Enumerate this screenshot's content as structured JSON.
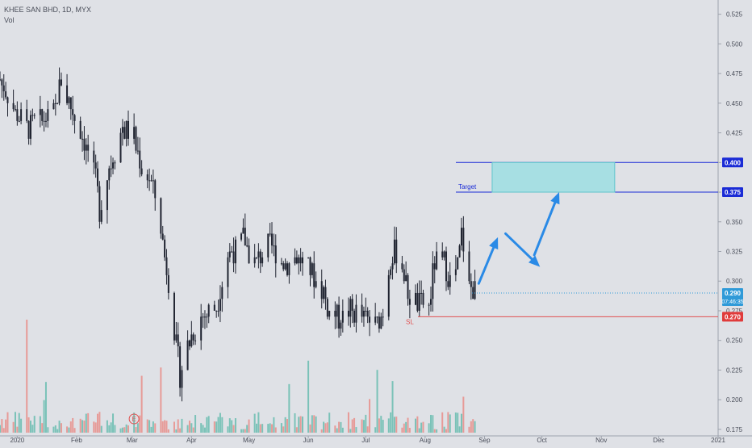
{
  "legend": {
    "symbol": "KHEE SAN BHD, 1D, MYX",
    "volume": "Vol"
  },
  "colors": {
    "background": "#dfe1e6",
    "candle": "#1f2330",
    "vol_up": "#6fbfb3",
    "vol_down": "#e8928e",
    "target_fill": "#a7dfe3",
    "target_line": "#1a2bd6",
    "sl_line": "#e05050",
    "arrow": "#2a8ae6"
  },
  "chart_data": {
    "type": "candlestick",
    "y_axis": {
      "range": [
        0.1695,
        0.537
      ],
      "ticks": [
        "0.525",
        "0.500",
        "0.475",
        "0.450",
        "0.425",
        "0.400",
        "0.375",
        "0.350",
        "0.325",
        "0.300",
        "0.275",
        "0.250",
        "0.225",
        "0.200",
        "0.175"
      ]
    },
    "x_axis": {
      "labels": [
        "2020",
        "Feb",
        "Mar",
        "Apr",
        "May",
        "Jun",
        "Jul",
        "Aug",
        "Sep",
        "Oct",
        "Nov",
        "Dec",
        "2021"
      ],
      "start_date": "2019-12-23",
      "end_date": "2021-01-01"
    },
    "series": [
      {
        "key": "price",
        "anchors": [
          [
            "2019-12-23",
            0.47
          ],
          [
            "2019-12-30",
            0.445
          ],
          [
            "2020-01-06",
            0.43
          ],
          [
            "2020-01-13",
            0.435
          ],
          [
            "2020-01-20",
            0.44
          ],
          [
            "2020-01-24",
            0.47
          ],
          [
            "2020-01-29",
            0.445
          ],
          [
            "2020-02-04",
            0.425
          ],
          [
            "2020-02-11",
            0.385
          ],
          [
            "2020-02-13",
            0.36
          ],
          [
            "2020-02-18",
            0.395
          ],
          [
            "2020-02-25",
            0.43
          ],
          [
            "2020-03-02",
            0.42
          ],
          [
            "2020-03-06",
            0.395
          ],
          [
            "2020-03-11",
            0.385
          ],
          [
            "2020-03-16",
            0.345
          ],
          [
            "2020-03-20",
            0.3
          ],
          [
            "2020-03-24",
            0.245
          ],
          [
            "2020-03-26",
            0.22
          ],
          [
            "2020-03-31",
            0.25
          ],
          [
            "2020-04-07",
            0.27
          ],
          [
            "2020-04-14",
            0.28
          ],
          [
            "2020-04-20",
            0.32
          ],
          [
            "2020-04-28",
            0.335
          ],
          [
            "2020-05-05",
            0.315
          ],
          [
            "2020-05-12",
            0.33
          ],
          [
            "2020-05-19",
            0.315
          ],
          [
            "2020-05-26",
            0.32
          ],
          [
            "2020-06-02",
            0.31
          ],
          [
            "2020-06-09",
            0.29
          ],
          [
            "2020-06-12",
            0.275
          ],
          [
            "2020-06-18",
            0.27
          ],
          [
            "2020-06-25",
            0.275
          ],
          [
            "2020-07-01",
            0.268
          ],
          [
            "2020-07-06",
            0.262
          ],
          [
            "2020-07-10",
            0.275
          ],
          [
            "2020-07-14",
            0.32
          ],
          [
            "2020-07-18",
            0.325
          ],
          [
            "2020-07-23",
            0.29
          ],
          [
            "2020-07-28",
            0.282
          ],
          [
            "2020-08-03",
            0.28
          ],
          [
            "2020-08-06",
            0.315
          ],
          [
            "2020-08-11",
            0.315
          ],
          [
            "2020-08-14",
            0.3
          ],
          [
            "2020-08-18",
            0.31
          ],
          [
            "2020-08-20",
            0.34
          ],
          [
            "2020-08-24",
            0.295
          ],
          [
            "2020-08-27",
            0.292
          ]
        ]
      },
      {
        "key": "volume",
        "name": "Vol"
      }
    ],
    "annotations": {
      "target": {
        "label": "Target",
        "low": 0.375,
        "high": 0.4,
        "start": "2020-09-05",
        "end": "2020-11-08",
        "low_label": "0.375",
        "high_label": "0.400"
      },
      "stop_loss": {
        "label": "SL",
        "value": 0.27,
        "value_label": "0.270"
      },
      "last_price": {
        "value": 0.29,
        "value_label": "0.290",
        "countdown": "07:46:35"
      },
      "arrows": [
        {
          "from": [
            "2020-08-29",
            0.298
          ],
          "to": [
            "2020-09-08",
            0.337
          ]
        },
        {
          "from": [
            "2020-09-12",
            0.34
          ],
          "to": [
            "2020-09-30",
            0.312
          ]
        },
        {
          "from": [
            "2020-09-27",
            0.322
          ],
          "to": [
            "2020-10-10",
            0.375
          ]
        }
      ],
      "event_icon": "E"
    }
  }
}
